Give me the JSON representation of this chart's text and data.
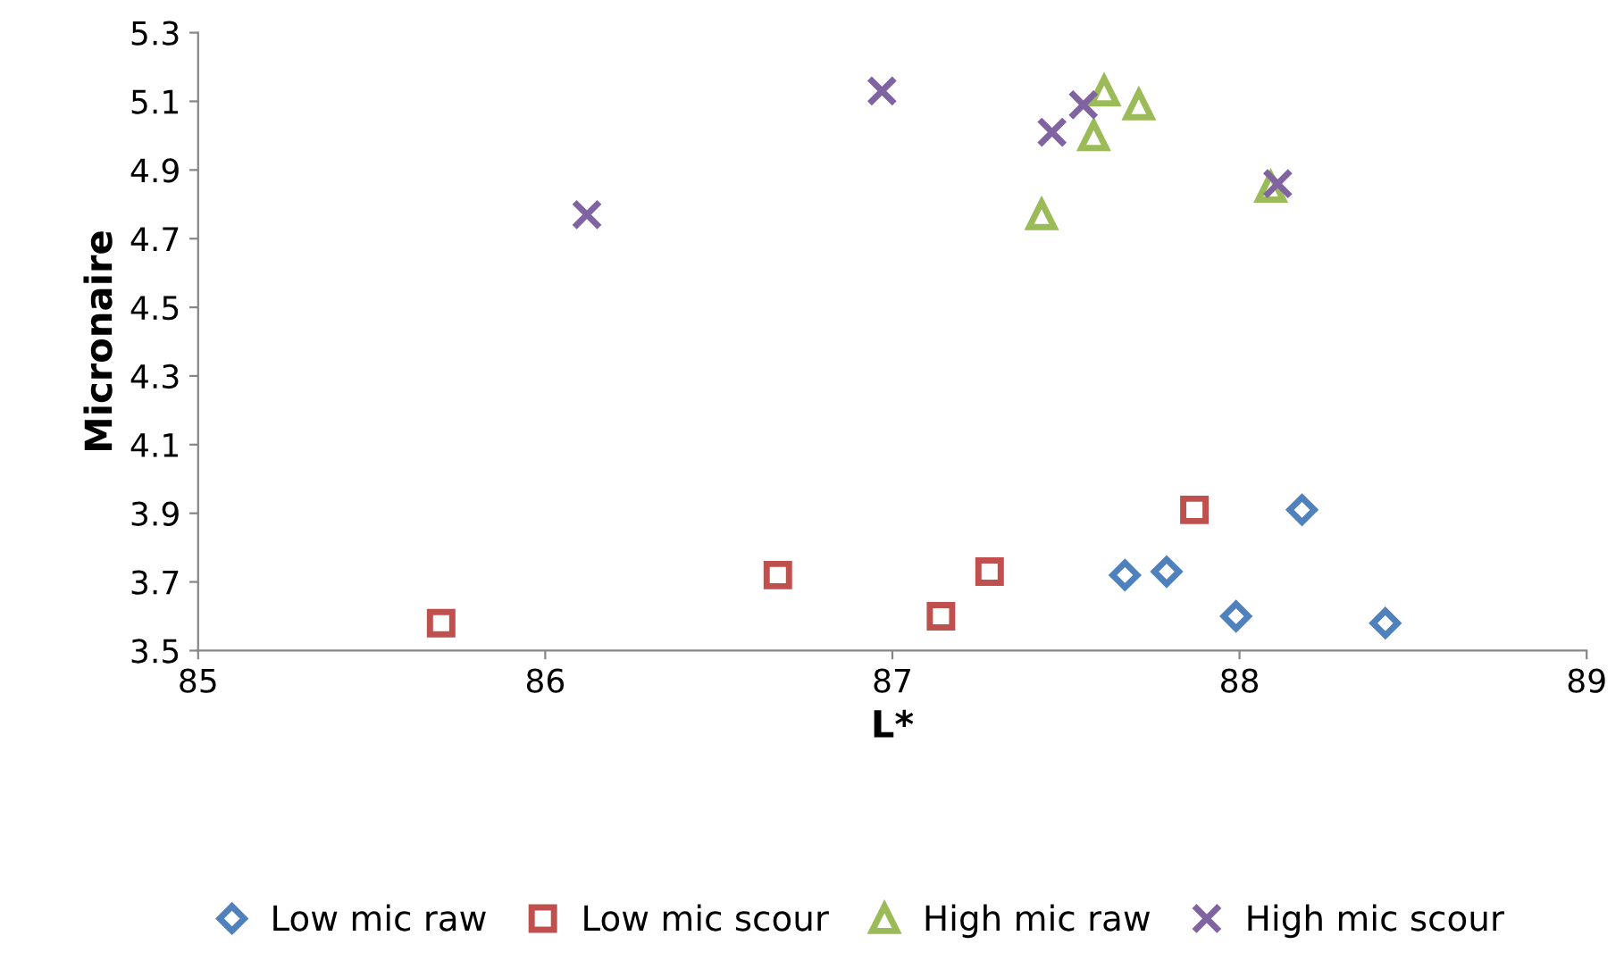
{
  "chart_data": {
    "type": "scatter",
    "xlabel": "L*",
    "ylabel": "Micronaire",
    "xlim": [
      85,
      89
    ],
    "xticks": [
      85,
      86,
      87,
      88,
      89
    ],
    "ylim": [
      3.5,
      5.3
    ],
    "yticks": [
      {
        "value": 3.5,
        "label": "3.5"
      },
      {
        "value": 3.7,
        "label": "3.7"
      },
      {
        "value": 3.9,
        "label": "3.9"
      },
      {
        "value": 4.1,
        "label": "4.1"
      },
      {
        "value": 4.3,
        "label": "4.3"
      },
      {
        "value": 4.5,
        "label": "4.5"
      },
      {
        "value": 4.7,
        "label": "4.7"
      },
      {
        "value": 4.9,
        "label": "4.9"
      },
      {
        "value": 5.1,
        "label": "5.1"
      },
      {
        "value": 5.3,
        "label": "5.3"
      }
    ],
    "grid": false,
    "legend": "bottom",
    "series": [
      {
        "name": "Low mic raw",
        "color": "#4f81bd",
        "marker": "diamond",
        "x": [
          87.67,
          87.79,
          87.99,
          88.18,
          88.42
        ],
        "values": [
          3.72,
          3.73,
          3.6,
          3.91,
          3.58
        ]
      },
      {
        "name": "Low mic scour",
        "color": "#c0504d",
        "marker": "square",
        "x": [
          85.7,
          86.67,
          87.14,
          87.28,
          87.87
        ],
        "values": [
          3.58,
          3.72,
          3.6,
          3.73,
          3.91
        ]
      },
      {
        "name": "High mic raw",
        "color": "#9bbb59",
        "marker": "triangle",
        "x": [
          87.43,
          87.58,
          87.61,
          87.71,
          88.09
        ],
        "values": [
          4.77,
          5.0,
          5.13,
          5.09,
          4.85
        ]
      },
      {
        "name": "High mic scour",
        "color": "#8064a2",
        "marker": "cross",
        "x": [
          86.12,
          86.97,
          87.46,
          87.55,
          88.11
        ],
        "values": [
          4.77,
          5.13,
          5.01,
          5.09,
          4.86
        ]
      }
    ]
  }
}
